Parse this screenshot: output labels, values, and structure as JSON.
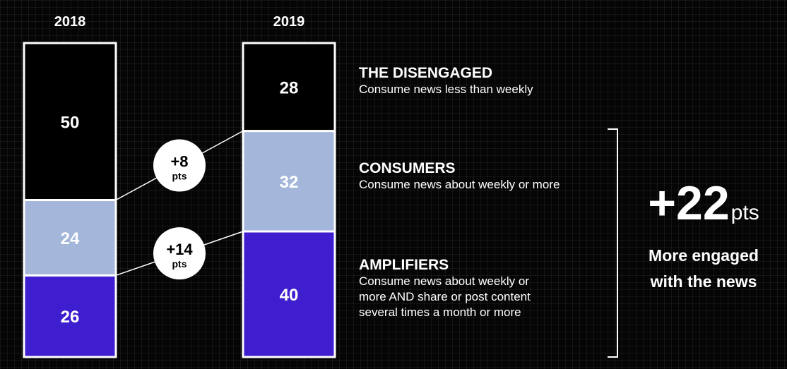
{
  "chart_data": {
    "type": "bar",
    "stacked": true,
    "categories": [
      "2018",
      "2019"
    ],
    "series": [
      {
        "name": "AMPLIFIERS",
        "values": [
          26,
          40
        ],
        "color": "#3f1ecf",
        "text_color": "#ffffff"
      },
      {
        "name": "CONSUMERS",
        "values": [
          24,
          32
        ],
        "color": "#a4b6da",
        "text_color": "#ffffff"
      },
      {
        "name": "THE DISENGAGED",
        "values": [
          50,
          28
        ],
        "color": "#000000",
        "text_color": "#ffffff"
      }
    ],
    "ylim": [
      0,
      100
    ],
    "changes": [
      {
        "series": "CONSUMERS",
        "value": "+8",
        "unit": "pts"
      },
      {
        "series": "AMPLIFIERS",
        "value": "+14",
        "unit": "pts"
      }
    ]
  },
  "legend": {
    "disengaged": {
      "title": "THE DISENGAGED",
      "desc": [
        "Consume news less than weekly"
      ]
    },
    "consumers": {
      "title": "CONSUMERS",
      "desc": [
        "Consume news about weekly or more"
      ]
    },
    "amplifiers": {
      "title": "AMPLIFIERS",
      "desc": [
        "Consume news about weekly or",
        "more AND share or post content",
        "several times a month or more"
      ]
    }
  },
  "total": {
    "value": "+22",
    "unit": "pts",
    "caption": [
      "More engaged",
      "with the news"
    ]
  }
}
